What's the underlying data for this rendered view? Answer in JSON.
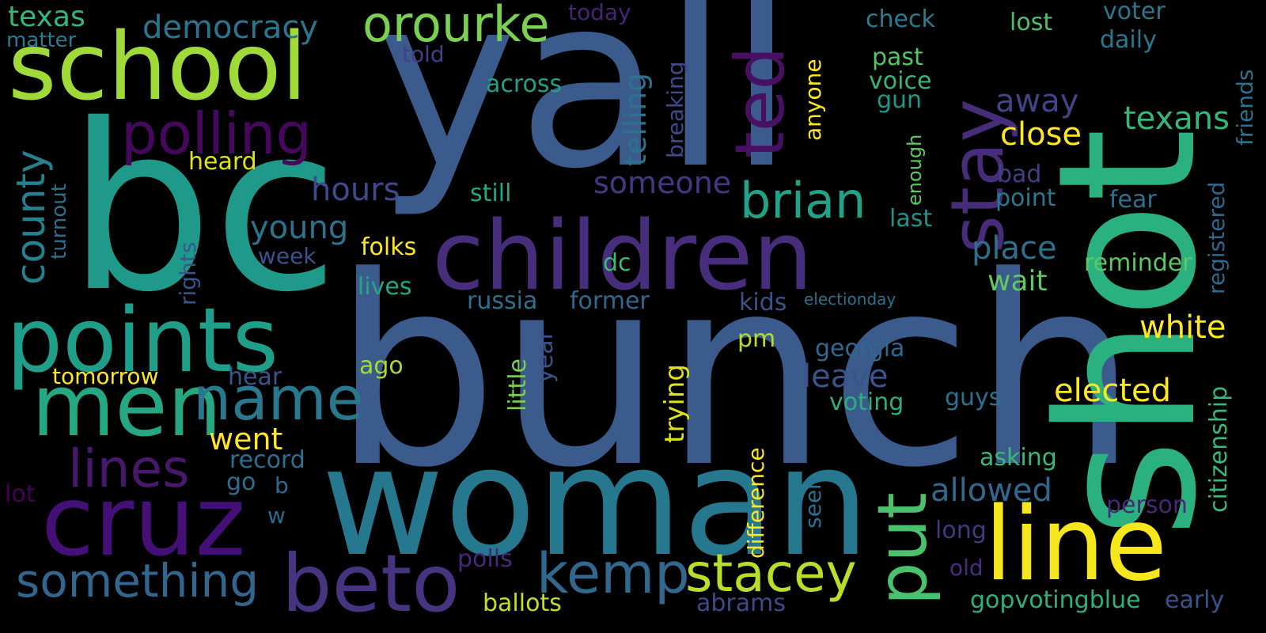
{
  "colors": {
    "background": "#000000",
    "palette": [
      "#440154",
      "#3b528b",
      "#21918c",
      "#5ec962",
      "#fde725"
    ]
  },
  "words": [
    {
      "key": "bunch",
      "text": "bunch",
      "color": "#3b5b8d"
    },
    {
      "key": "yall",
      "text": "yall",
      "color": "#3b5b8d"
    },
    {
      "key": "bc",
      "text": "bc",
      "color": "#1f9a8a"
    },
    {
      "key": "shot",
      "text": "shot",
      "color": "#2bb07f"
    },
    {
      "key": "woman",
      "text": "woman",
      "color": "#26788e"
    },
    {
      "key": "children",
      "text": "children",
      "color": "#472d7b"
    },
    {
      "key": "school",
      "text": "school",
      "color": "#a0da39"
    },
    {
      "key": "points",
      "text": "points",
      "color": "#1f9e89"
    },
    {
      "key": "cruz",
      "text": "cruz",
      "color": "#440f76"
    },
    {
      "key": "men",
      "text": "men",
      "color": "#25a784"
    },
    {
      "key": "name",
      "text": "name",
      "color": "#2a788e"
    },
    {
      "key": "line",
      "text": "line",
      "color": "#f5e61e"
    },
    {
      "key": "beto",
      "text": "beto",
      "color": "#463480"
    },
    {
      "key": "put",
      "text": "put",
      "color": "#4ac16d"
    },
    {
      "key": "ted",
      "text": "ted",
      "color": "#471063"
    },
    {
      "key": "stay",
      "text": "stay",
      "color": "#472c7a"
    },
    {
      "key": "kemp",
      "text": "kemp",
      "color": "#30688e"
    },
    {
      "key": "stacey",
      "text": "stacey",
      "color": "#b8de29"
    },
    {
      "key": "brian",
      "text": "brian",
      "color": "#20a386"
    },
    {
      "key": "polling",
      "text": "polling",
      "color": "#46085c"
    },
    {
      "key": "orourke",
      "text": "orourke",
      "color": "#7ad151"
    },
    {
      "key": "lines",
      "text": "lines",
      "color": "#48186a"
    },
    {
      "key": "something",
      "text": "something",
      "color": "#31668e"
    },
    {
      "key": "county",
      "text": "county",
      "color": "#26818e"
    },
    {
      "key": "democracy",
      "text": "democracy",
      "color": "#2a768e"
    },
    {
      "key": "texas",
      "text": "texas",
      "color": "#35b779"
    },
    {
      "key": "matter",
      "text": "matter",
      "color": "#287c8e"
    },
    {
      "key": "turnout",
      "text": "turnout",
      "color": "#2d708e"
    },
    {
      "key": "rights",
      "text": "rights",
      "color": "#39558c"
    },
    {
      "key": "tomorrow",
      "text": "tomorrow",
      "color": "#fde725"
    },
    {
      "key": "hear",
      "text": "hear",
      "color": "#39568c"
    },
    {
      "key": "went",
      "text": "went",
      "color": "#fde725"
    },
    {
      "key": "record",
      "text": "record",
      "color": "#2e6e8e"
    },
    {
      "key": "go",
      "text": "go",
      "color": "#2d708e"
    },
    {
      "key": "lot",
      "text": "lot",
      "color": "#440154"
    },
    {
      "key": "w",
      "text": "w",
      "color": "#31688e"
    },
    {
      "key": "b",
      "text": "b",
      "color": "#31688e"
    },
    {
      "key": "young",
      "text": "young",
      "color": "#2c738e"
    },
    {
      "key": "week",
      "text": "week",
      "color": "#3b528b"
    },
    {
      "key": "hours",
      "text": "hours",
      "color": "#3e4a89"
    },
    {
      "key": "heard",
      "text": "heard",
      "color": "#dfe318"
    },
    {
      "key": "folks",
      "text": "folks",
      "color": "#fde725"
    },
    {
      "key": "lives",
      "text": "lives",
      "color": "#22a884"
    },
    {
      "key": "ago",
      "text": "ago",
      "color": "#a5db36"
    },
    {
      "key": "polls",
      "text": "polls",
      "color": "#482878"
    },
    {
      "key": "ballots",
      "text": "ballots",
      "color": "#c2df23"
    },
    {
      "key": "told",
      "text": "told",
      "color": "#433e85"
    },
    {
      "key": "across",
      "text": "across",
      "color": "#1fa188"
    },
    {
      "key": "still",
      "text": "still",
      "color": "#22a884"
    },
    {
      "key": "russia",
      "text": "russia",
      "color": "#2c728e"
    },
    {
      "key": "former",
      "text": "former",
      "color": "#31688e"
    },
    {
      "key": "little",
      "text": "little",
      "color": "#7ad151"
    },
    {
      "key": "year",
      "text": "year",
      "color": "#3b528b"
    },
    {
      "key": "dc",
      "text": "dc",
      "color": "#3dbc74"
    },
    {
      "key": "today",
      "text": "today",
      "color": "#482475"
    },
    {
      "key": "telling",
      "text": "telling",
      "color": "#2c728e"
    },
    {
      "key": "breaking",
      "text": "breaking",
      "color": "#3e4a89"
    },
    {
      "key": "someone",
      "text": "someone",
      "color": "#453781"
    },
    {
      "key": "trying",
      "text": "trying",
      "color": "#dfe318"
    },
    {
      "key": "difference",
      "text": "difference",
      "color": "#fde725"
    },
    {
      "key": "pm",
      "text": "pm",
      "color": "#b5de2b"
    },
    {
      "key": "abrams",
      "text": "abrams",
      "color": "#3e4989"
    },
    {
      "key": "anyone",
      "text": "anyone",
      "color": "#fde725"
    },
    {
      "key": "kids",
      "text": "kids",
      "color": "#3b528b"
    },
    {
      "key": "georgia",
      "text": "georgia",
      "color": "#31688e"
    },
    {
      "key": "leave",
      "text": "leave",
      "color": "#3b528b"
    },
    {
      "key": "voting",
      "text": "voting",
      "color": "#2ab07f"
    },
    {
      "key": "seen",
      "text": "seen",
      "color": "#2c728e"
    },
    {
      "key": "electionday",
      "text": "electionday",
      "color": "#2c728e"
    },
    {
      "key": "enough",
      "text": "enough",
      "color": "#5ec962"
    },
    {
      "key": "check",
      "text": "check",
      "color": "#287d8e"
    },
    {
      "key": "past",
      "text": "past",
      "color": "#52c569"
    },
    {
      "key": "voice",
      "text": "voice",
      "color": "#35b779"
    },
    {
      "key": "gun",
      "text": "gun",
      "color": "#1f988b"
    },
    {
      "key": "last",
      "text": "last",
      "color": "#20928c"
    },
    {
      "key": "away",
      "text": "away",
      "color": "#414487"
    },
    {
      "key": "close",
      "text": "close",
      "color": "#fde725"
    },
    {
      "key": "place",
      "text": "place",
      "color": "#2d708e"
    },
    {
      "key": "wait",
      "text": "wait",
      "color": "#5ec962"
    },
    {
      "key": "allowed",
      "text": "allowed",
      "color": "#31688e"
    },
    {
      "key": "asking",
      "text": "asking",
      "color": "#3aba76"
    },
    {
      "key": "long",
      "text": "long",
      "color": "#453781"
    },
    {
      "key": "old",
      "text": "old",
      "color": "#472f7d"
    },
    {
      "key": "gopvotingblue",
      "text": "gopvotingblue",
      "color": "#2db27d"
    },
    {
      "key": "guys",
      "text": "guys",
      "color": "#2c728e"
    },
    {
      "key": "lost",
      "text": "lost",
      "color": "#4ac16d"
    },
    {
      "key": "voter",
      "text": "voter",
      "color": "#2a788e"
    },
    {
      "key": "daily",
      "text": "daily",
      "color": "#2a788e"
    },
    {
      "key": "texans",
      "text": "texans",
      "color": "#35b779"
    },
    {
      "key": "bad",
      "text": "bad",
      "color": "#433e85"
    },
    {
      "key": "point",
      "text": "point",
      "color": "#29798e"
    },
    {
      "key": "fear",
      "text": "fear",
      "color": "#2c728e"
    },
    {
      "key": "reminder",
      "text": "reminder",
      "color": "#5ec962"
    },
    {
      "key": "white",
      "text": "white",
      "color": "#fde725"
    },
    {
      "key": "elected",
      "text": "elected",
      "color": "#fde725"
    },
    {
      "key": "person",
      "text": "person",
      "color": "#482878"
    },
    {
      "key": "early",
      "text": "early",
      "color": "#3b528b"
    },
    {
      "key": "friends",
      "text": "friends",
      "color": "#2c728e"
    },
    {
      "key": "registered",
      "text": "registered",
      "color": "#31688e"
    },
    {
      "key": "citizenship",
      "text": "citizenship",
      "color": "#3aba76"
    }
  ]
}
